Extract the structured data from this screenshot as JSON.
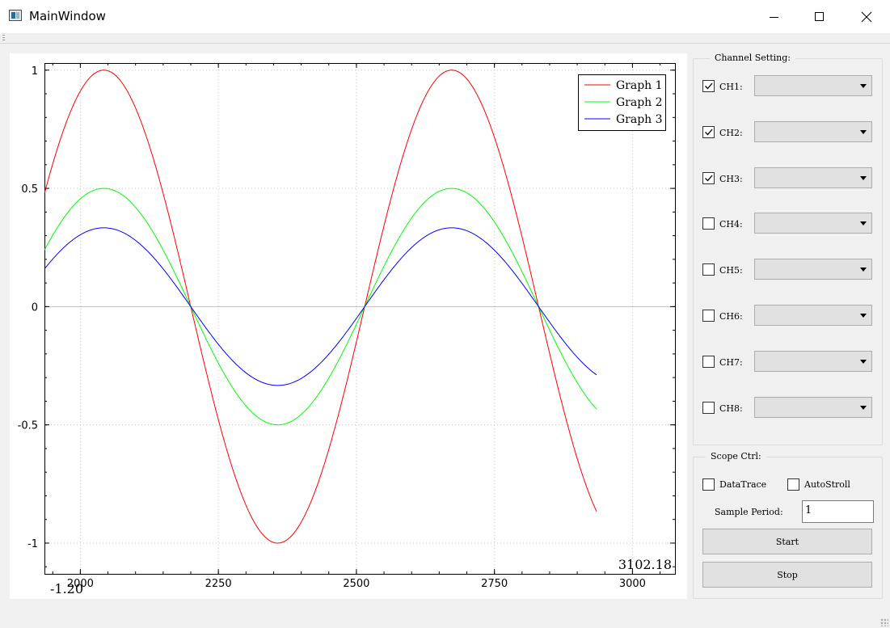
{
  "window": {
    "title": "MainWindow",
    "icons": {
      "app": "app-window-icon",
      "minimize": "minimize-icon",
      "maximize": "maximize-icon",
      "close": "close-icon"
    }
  },
  "plot": {
    "corner_x_readout": "3102.18",
    "corner_y_readout": "-1.20"
  },
  "chart_data": {
    "type": "line",
    "x_range": [
      1935,
      3077
    ],
    "y_range": [
      -1.13,
      1.03
    ],
    "x_ticks": [
      2000,
      2250,
      2500,
      2750,
      3000
    ],
    "x_tick_labels": [
      "2000",
      "2250",
      "2500",
      "2750",
      "3000"
    ],
    "y_ticks": [
      1,
      0.5,
      0,
      -0.5,
      -1
    ],
    "y_tick_labels": [
      "1",
      "0.5",
      "0",
      "-0.5",
      "-1"
    ],
    "grid": true,
    "legend_position": "top-right",
    "series_formula": "amplitude * sin(2*pi*(x - 1885)/630)",
    "series": [
      {
        "name": "Graph 1",
        "color": "#ff0000",
        "amplitude": 1.0,
        "x_start": 1935,
        "x_end": 2935
      },
      {
        "name": "Graph 2",
        "color": "#00ff00",
        "amplitude": 0.5,
        "x_start": 1935,
        "x_end": 2935
      },
      {
        "name": "Graph 3",
        "color": "#0000ff",
        "amplitude": 0.3333,
        "x_start": 1935,
        "x_end": 2935
      }
    ]
  },
  "channel_setting": {
    "title": "Channel Setting:",
    "channels": [
      {
        "label": "CH1:",
        "checked": true,
        "value": ""
      },
      {
        "label": "CH2:",
        "checked": true,
        "value": ""
      },
      {
        "label": "CH3:",
        "checked": true,
        "value": ""
      },
      {
        "label": "CH4:",
        "checked": false,
        "value": ""
      },
      {
        "label": "CH5:",
        "checked": false,
        "value": ""
      },
      {
        "label": "CH6:",
        "checked": false,
        "value": ""
      },
      {
        "label": "CH7:",
        "checked": false,
        "value": ""
      },
      {
        "label": "CH8:",
        "checked": false,
        "value": ""
      }
    ]
  },
  "scope_ctrl": {
    "title": "Scope Ctrl:",
    "datatrace_label": "DataTrace",
    "datatrace_checked": false,
    "autoscroll_label": "AutoStroll",
    "autoscroll_checked": false,
    "sample_period_label": "Sample Period:",
    "sample_period_value": "1",
    "start_label": "Start",
    "stop_label": "Stop"
  }
}
